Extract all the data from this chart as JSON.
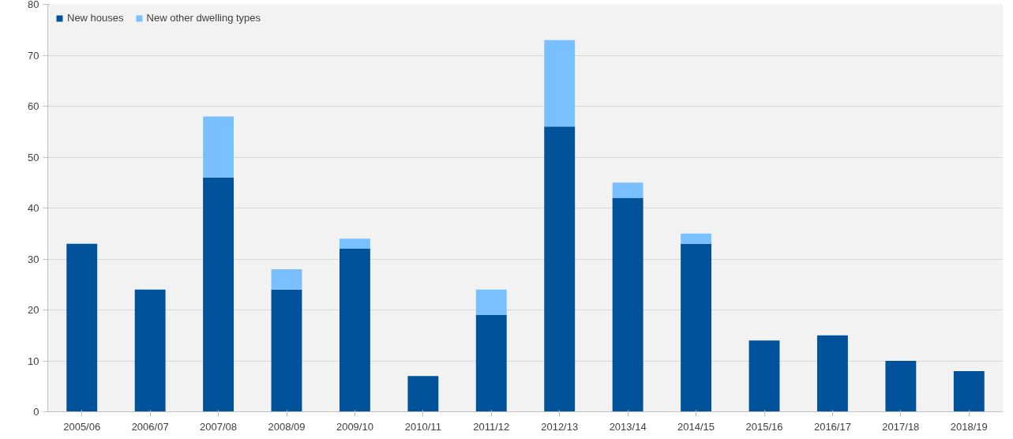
{
  "chart_data": {
    "type": "bar",
    "stacked": true,
    "categories": [
      "2005/06",
      "2006/07",
      "2007/08",
      "2008/09",
      "2009/10",
      "2010/11",
      "2011/12",
      "2012/13",
      "2013/14",
      "2014/15",
      "2015/16",
      "2016/17",
      "2017/18",
      "2018/19"
    ],
    "series": [
      {
        "name": "New houses",
        "color": "#00529b",
        "values": [
          33,
          24,
          46,
          24,
          32,
          7,
          19,
          56,
          42,
          33,
          14,
          15,
          10,
          8
        ]
      },
      {
        "name": "New other dwelling types",
        "color": "#7abfff",
        "values": [
          null,
          null,
          12,
          4,
          2,
          null,
          5,
          17,
          3,
          2,
          null,
          null,
          null,
          null
        ]
      }
    ],
    "ylim": [
      0,
      80
    ],
    "yticks": [
      0,
      10,
      20,
      30,
      40,
      50,
      60,
      70,
      80
    ],
    "grid": "y",
    "legend": "top left"
  }
}
